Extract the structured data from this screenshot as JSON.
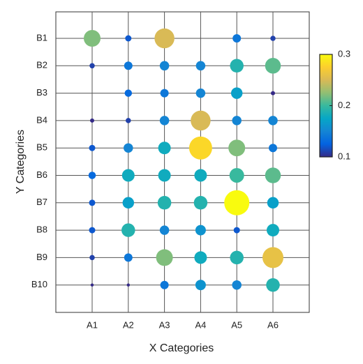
{
  "chart_data": {
    "type": "bubble-grid",
    "x_label": "X Categories",
    "y_label": "Y Categories",
    "x": [
      "A1",
      "A2",
      "A3",
      "A4",
      "A5",
      "A6"
    ],
    "y": [
      "B1",
      "B2",
      "B3",
      "B4",
      "B5",
      "B6",
      "B7",
      "B8",
      "B9",
      "B10"
    ],
    "values": [
      [
        0.22,
        0.12,
        0.25,
        null,
        0.14,
        0.11
      ],
      [
        0.11,
        0.14,
        0.15,
        0.15,
        0.19,
        0.21
      ],
      [
        null,
        0.13,
        0.14,
        0.15,
        0.17,
        0.1
      ],
      [
        0.1,
        0.11,
        0.15,
        0.25,
        0.15,
        0.15
      ],
      [
        0.12,
        0.15,
        0.18,
        0.28,
        0.22,
        0.14
      ],
      [
        0.13,
        0.18,
        0.18,
        0.18,
        0.2,
        0.21
      ],
      [
        0.12,
        0.17,
        0.19,
        0.19,
        0.3,
        0.17
      ],
      [
        0.12,
        0.19,
        0.15,
        0.16,
        0.12,
        0.18
      ],
      [
        0.11,
        0.14,
        0.22,
        0.18,
        0.19,
        0.26
      ],
      [
        0.09,
        0.09,
        0.14,
        0.16,
        0.15,
        0.19
      ]
    ],
    "colormap": "parula",
    "clim": [
      0.1,
      0.3
    ],
    "cticks": [
      0.1,
      0.2,
      0.3
    ],
    "grid": true
  }
}
